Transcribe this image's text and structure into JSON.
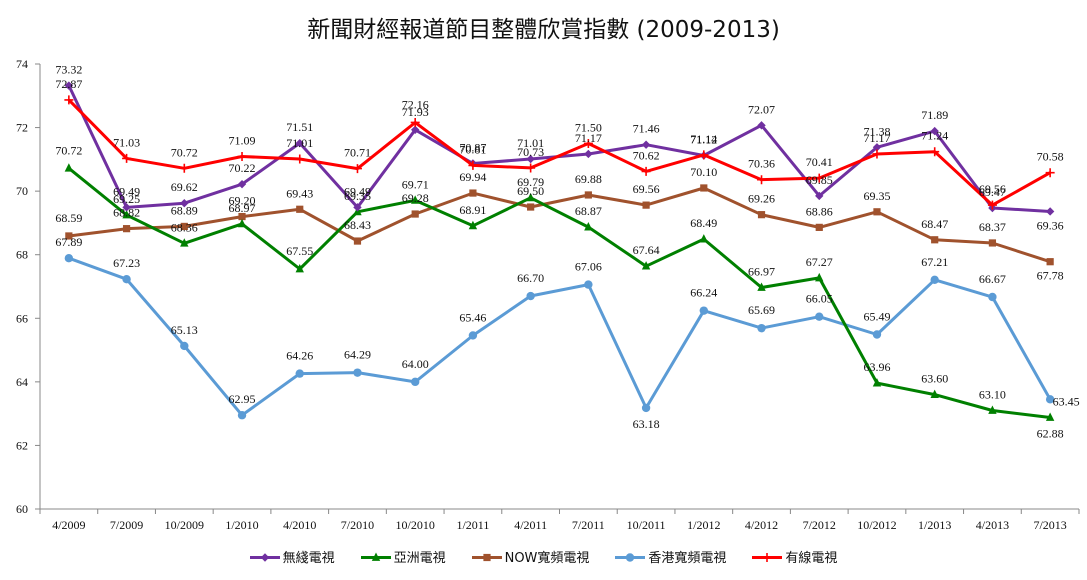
{
  "chart_data": {
    "type": "line",
    "title": "新聞財經報道節目整體欣賞指數 (2009-2013)",
    "categories": [
      "4/2009",
      "7/2009",
      "10/2009",
      "1/2010",
      "4/2010",
      "7/2010",
      "10/2010",
      "1/2011",
      "4/2011",
      "7/2011",
      "10/2011",
      "1/2012",
      "4/2012",
      "7/2012",
      "10/2012",
      "1/2013",
      "4/2013",
      "7/2013"
    ],
    "ylim": [
      60,
      74
    ],
    "yticks": [
      "60",
      "62",
      "64",
      "66",
      "68",
      "70",
      "72",
      "74"
    ],
    "grid": false,
    "legend_position": "bottom",
    "series": [
      {
        "name": "無綫電視",
        "color": "#7030A0",
        "marker": "diamond",
        "values": [
          73.32,
          69.49,
          69.62,
          70.22,
          71.51,
          69.49,
          71.93,
          70.87,
          71.01,
          71.17,
          71.46,
          71.12,
          72.07,
          69.85,
          71.38,
          71.89,
          69.47,
          69.36
        ],
        "labels": [
          "73.32",
          "69.49",
          "69.62",
          "70.22",
          "71.51",
          "69.49",
          "71.93",
          "70.87",
          "71.01",
          "71.17",
          "71.46",
          "71.12",
          "72.07",
          "69.85",
          "71.38",
          "71.89",
          "69.47",
          "69.36"
        ]
      },
      {
        "name": "亞洲電視",
        "color": "#008000",
        "marker": "triangle",
        "values": [
          70.72,
          69.25,
          68.36,
          68.97,
          67.55,
          69.35,
          69.71,
          68.91,
          69.79,
          68.87,
          67.64,
          68.49,
          66.97,
          67.27,
          63.96,
          63.6,
          63.1,
          62.88
        ],
        "labels": [
          "70.72",
          "69.25",
          "68.36",
          "68.97",
          "67.55",
          "69.35",
          "69.71",
          "68.91",
          "69.79",
          "68.87",
          "67.64",
          "68.49",
          "66.97",
          "67.27",
          "63.96",
          "63.60",
          "63.10",
          "62.88"
        ]
      },
      {
        "name": "NOW寬頻電視",
        "color": "#A0522D",
        "marker": "square",
        "values": [
          68.59,
          68.82,
          68.89,
          69.2,
          69.43,
          68.43,
          69.28,
          69.94,
          69.5,
          69.88,
          69.56,
          70.1,
          69.26,
          68.86,
          69.35,
          68.47,
          68.37,
          67.78
        ],
        "labels": [
          "68.59",
          "68.82",
          "68.89",
          "69.20",
          "69.43",
          "68.43",
          "69.28",
          "69.94",
          "69.50",
          "69.88",
          "69.56",
          "70.10",
          "69.26",
          "68.86",
          "69.35",
          "68.47",
          "68.37",
          "67.78"
        ]
      },
      {
        "name": "香港寬頻電視",
        "color": "#5B9BD5",
        "marker": "circle",
        "values": [
          67.89,
          67.23,
          65.13,
          62.95,
          64.26,
          64.29,
          64.0,
          65.46,
          66.7,
          67.06,
          63.18,
          66.24,
          65.69,
          66.05,
          65.49,
          67.21,
          66.67,
          63.45
        ],
        "labels": [
          "67.89",
          "67.23",
          "65.13",
          "62.95",
          "64.26",
          "64.29",
          "64.00",
          "65.46",
          "66.70",
          "67.06",
          "63.18",
          "66.24",
          "65.69",
          "66.05",
          "65.49",
          "67.21",
          "66.67",
          "63.45"
        ]
      },
      {
        "name": "有線電視",
        "color": "#FF0000",
        "marker": "plus",
        "values": [
          72.87,
          71.03,
          70.72,
          71.09,
          71.01,
          70.71,
          72.16,
          70.81,
          70.73,
          71.5,
          70.62,
          71.14,
          70.36,
          70.41,
          71.17,
          71.24,
          69.56,
          70.58
        ],
        "labels": [
          "72.87",
          "71.03",
          "70.72",
          "71.09",
          "71.01",
          "70.71",
          "72.16",
          "70.81",
          "70.73",
          "71.50",
          "70.62",
          "71.14",
          "70.36",
          "70.41",
          "71.17",
          "71.24",
          "69.56",
          "70.58"
        ]
      }
    ]
  }
}
